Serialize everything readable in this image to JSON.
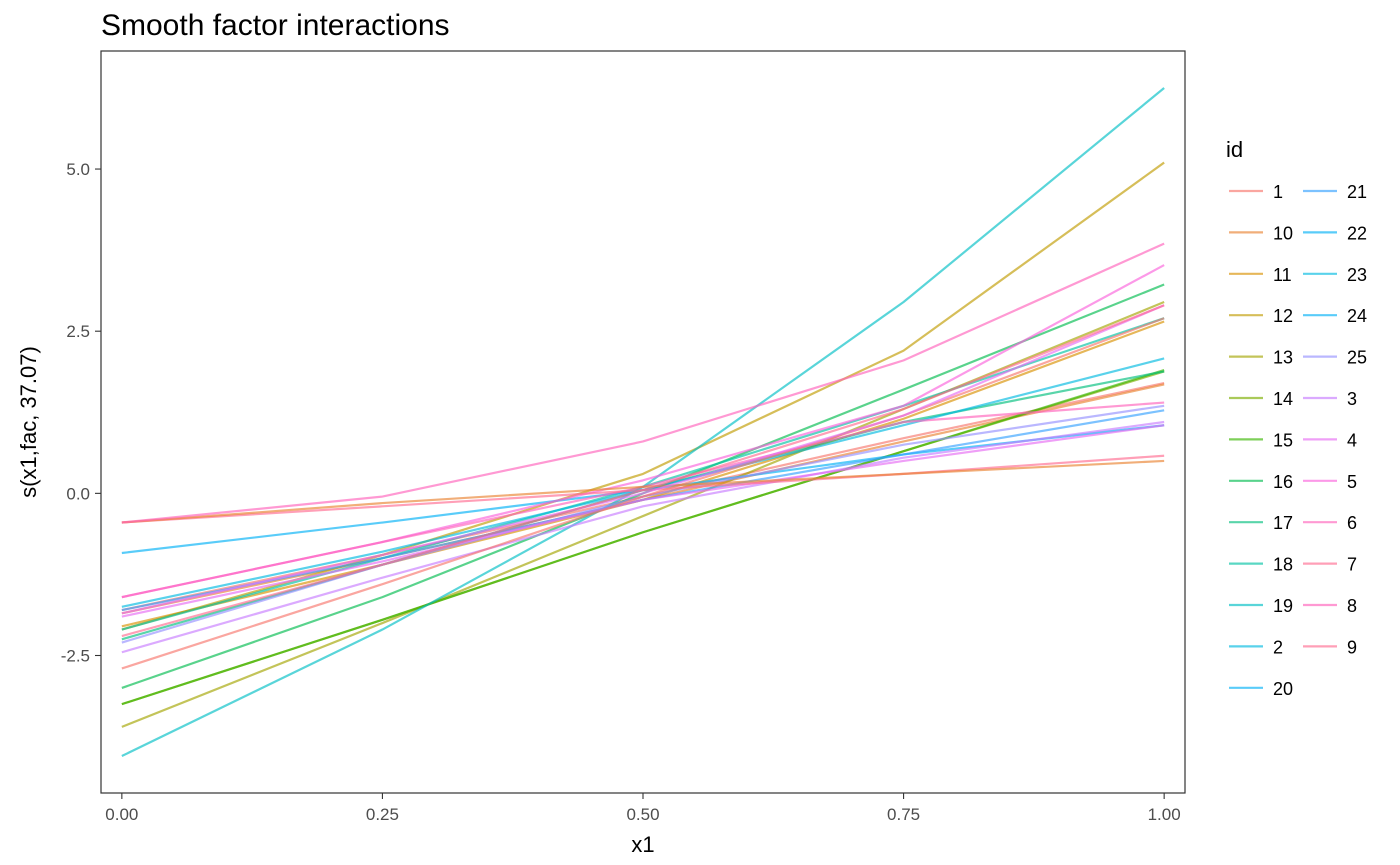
{
  "chart_data": {
    "type": "line",
    "title": "Smooth factor interactions",
    "xlabel": "x1",
    "ylabel": "s(x1,fac, 37.07)",
    "xlim": [
      -0.02,
      1.02
    ],
    "ylim": [
      -4.62,
      6.82
    ],
    "x_ticks": [
      0.0,
      0.25,
      0.5,
      0.75,
      1.0
    ],
    "x_tick_labels": [
      "0.00",
      "0.25",
      "0.50",
      "0.75",
      "1.00"
    ],
    "y_ticks": [
      -2.5,
      0.0,
      2.5,
      5.0
    ],
    "y_tick_labels": [
      "-2.5",
      "0.0",
      "2.5",
      "5.0"
    ],
    "grid": false,
    "legend_title": "id",
    "legend_position": "right",
    "x": [
      0.0,
      0.25,
      0.5,
      0.75,
      1.0
    ],
    "series": [
      {
        "name": "1",
        "color": "#F8766D",
        "values": [
          -1.8,
          -0.95,
          -0.05,
          0.85,
          1.7
        ]
      },
      {
        "name": "10",
        "color": "#EA8331",
        "values": [
          -1.85,
          -1.0,
          -0.1,
          0.8,
          1.68
        ]
      },
      {
        "name": "11",
        "color": "#D89000",
        "values": [
          -2.05,
          -1.1,
          -0.1,
          1.15,
          2.65
        ]
      },
      {
        "name": "12",
        "color": "#C09B00",
        "values": [
          -2.1,
          -0.95,
          0.3,
          2.2,
          5.1
        ]
      },
      {
        "name": "13",
        "color": "#A3A500",
        "values": [
          -3.6,
          -2.0,
          -0.35,
          1.3,
          2.95
        ]
      },
      {
        "name": "14",
        "color": "#7CAE00",
        "values": [
          -3.25,
          -1.95,
          -0.6,
          0.65,
          1.88
        ]
      },
      {
        "name": "15",
        "color": "#39B600",
        "values": [
          -3.25,
          -1.95,
          -0.6,
          0.65,
          1.9
        ]
      },
      {
        "name": "16",
        "color": "#00BB4E",
        "values": [
          -3.0,
          -1.6,
          0.0,
          1.6,
          3.22
        ]
      },
      {
        "name": "17",
        "color": "#00BF7D",
        "values": [
          -2.25,
          -1.1,
          0.05,
          1.1,
          1.88
        ]
      },
      {
        "name": "18",
        "color": "#00C1A3",
        "values": [
          -2.1,
          -1.0,
          0.1,
          1.35,
          2.7
        ]
      },
      {
        "name": "19",
        "color": "#00BFC4",
        "values": [
          -4.05,
          -2.1,
          0.1,
          2.95,
          6.25
        ]
      },
      {
        "name": "2",
        "color": "#00BAE0",
        "values": [
          -1.75,
          -0.9,
          0.05,
          1.05,
          2.08
        ]
      },
      {
        "name": "20",
        "color": "#00B0F6",
        "values": [
          -0.92,
          -0.45,
          0.05,
          0.6,
          1.05
        ]
      },
      {
        "name": "21",
        "color": "#35A2FF",
        "values": [
          -1.8,
          -1.0,
          -0.1,
          0.6,
          1.28
        ]
      },
      {
        "name": "22",
        "color": "#9590FF",
        "values": [
          -2.3,
          -1.1,
          -0.05,
          0.75,
          1.35
        ]
      },
      {
        "name": "23",
        "color": "#C77CFF",
        "values": [
          -2.45,
          -1.3,
          -0.2,
          0.55,
          1.1
        ]
      },
      {
        "name": "24",
        "color": "#E76BF3",
        "values": [
          -1.9,
          -1.05,
          -0.1,
          0.5,
          1.05
        ]
      },
      {
        "name": "25",
        "color": "#FA62DB",
        "values": [
          -1.6,
          -0.75,
          0.2,
          1.35,
          3.52
        ]
      },
      {
        "name": "3",
        "color": "#FF62BC",
        "values": [
          -1.6,
          -0.75,
          0.1,
          1.1,
          1.4
        ]
      },
      {
        "name": "4",
        "color": "#FF6C90",
        "values": [
          -0.45,
          -0.2,
          0.05,
          0.3,
          0.58
        ]
      },
      {
        "name": "5",
        "color": "#F8766D",
        "values": [
          -2.7,
          -1.4,
          -0.05,
          1.2,
          2.7
        ]
      },
      {
        "name": "6",
        "color": "#EA8331",
        "values": [
          -0.45,
          -0.15,
          0.1,
          0.3,
          0.5
        ]
      },
      {
        "name": "7",
        "color": "#FF62BC",
        "values": [
          -0.45,
          -0.05,
          0.8,
          2.05,
          3.85
        ]
      },
      {
        "name": "8",
        "color": "#E76BF3",
        "values": [
          -1.85,
          -0.95,
          0.0,
          1.2,
          2.9
        ]
      },
      {
        "name": "9",
        "color": "#FF6C90",
        "values": [
          -2.2,
          -1.1,
          0.05,
          1.3,
          2.9
        ]
      }
    ],
    "legend_colors": [
      "#F8766D",
      "#EA8331",
      "#D89000",
      "#C09B00",
      "#A3A500",
      "#7CAE00",
      "#39B600",
      "#00BB4E",
      "#00BF7D",
      "#00C1A3",
      "#00BFC4",
      "#00BAE0",
      "#00B0F6",
      "#35A2FF",
      "#00B0F6",
      "#00BAE0",
      "#00B0F6",
      "#9590FF",
      "#C77CFF",
      "#E76BF3",
      "#FA62DB",
      "#FF62BC",
      "#FF6C90",
      "#FF62BC",
      "#FF6C90"
    ]
  }
}
